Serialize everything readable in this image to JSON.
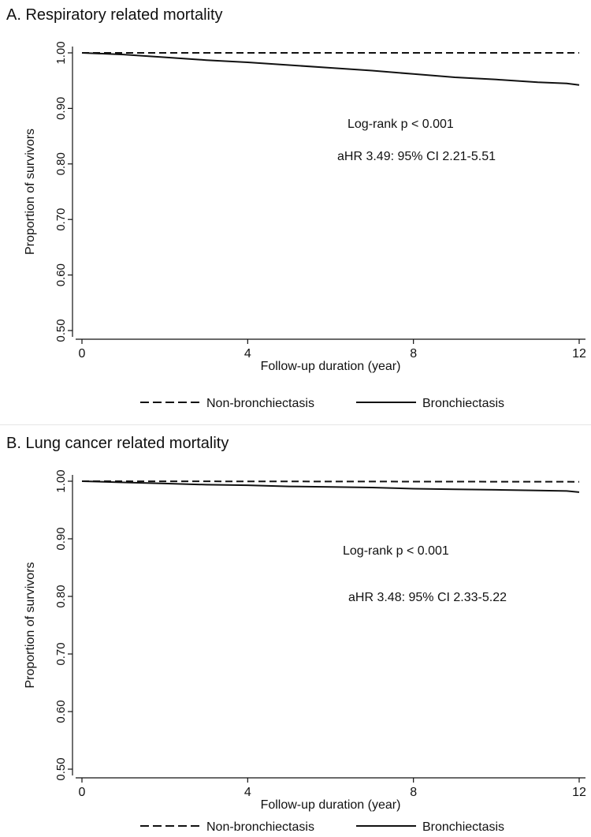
{
  "chart_data": [
    {
      "type": "line",
      "title": "A. Respiratory related mortality",
      "xlabel": "Follow-up duration (year)",
      "ylabel": "Proportion of survivors",
      "xlim": [
        0,
        12
      ],
      "ylim": [
        0.5,
        1.0
      ],
      "xticks": [
        "0",
        "4",
        "8",
        "12"
      ],
      "yticks": [
        "0.50",
        "0.60",
        "0.70",
        "0.80",
        "0.90",
        "1.00"
      ],
      "annotations": [
        "Log-rank p < 0.001",
        "aHR 3.49: 95% CI 2.21-5.51"
      ],
      "legend_position": "bottom",
      "series": [
        {
          "name": "Non-bronchiectasis",
          "style": "dashed",
          "color": "#111111",
          "x": [
            0,
            12
          ],
          "y": [
            1.0,
            1.0
          ]
        },
        {
          "name": "Bronchiectasis",
          "style": "solid",
          "color": "#111111",
          "x": [
            0,
            1,
            2,
            3,
            4,
            5,
            6,
            7,
            8,
            9,
            10,
            11,
            11.7,
            12
          ],
          "y": [
            1.0,
            0.997,
            0.992,
            0.987,
            0.983,
            0.978,
            0.973,
            0.968,
            0.962,
            0.956,
            0.952,
            0.947,
            0.945,
            0.942
          ]
        }
      ]
    },
    {
      "type": "line",
      "title": "B. Lung cancer related mortality",
      "xlabel": "Follow-up duration (year)",
      "ylabel": "Proportion of survivors",
      "xlim": [
        0,
        12
      ],
      "ylim": [
        0.5,
        1.0
      ],
      "xticks": [
        "0",
        "4",
        "8",
        "12"
      ],
      "yticks": [
        "0.50",
        "0.60",
        "0.70",
        "0.80",
        "0.90",
        "1.00"
      ],
      "annotations": [
        "Log-rank p < 0.001",
        "aHR 3.48: 95% CI 2.33-5.22"
      ],
      "legend_position": "bottom",
      "series": [
        {
          "name": "Non-bronchiectasis",
          "style": "dashed",
          "color": "#111111",
          "x": [
            0,
            12
          ],
          "y": [
            1.0,
            0.999
          ]
        },
        {
          "name": "Bronchiectasis",
          "style": "solid",
          "color": "#111111",
          "x": [
            0,
            1,
            2,
            3,
            4,
            5,
            6,
            7,
            8,
            9,
            10,
            11,
            11.7,
            12
          ],
          "y": [
            1.0,
            0.998,
            0.996,
            0.994,
            0.993,
            0.991,
            0.99,
            0.989,
            0.987,
            0.986,
            0.985,
            0.984,
            0.983,
            0.981
          ]
        }
      ]
    }
  ]
}
